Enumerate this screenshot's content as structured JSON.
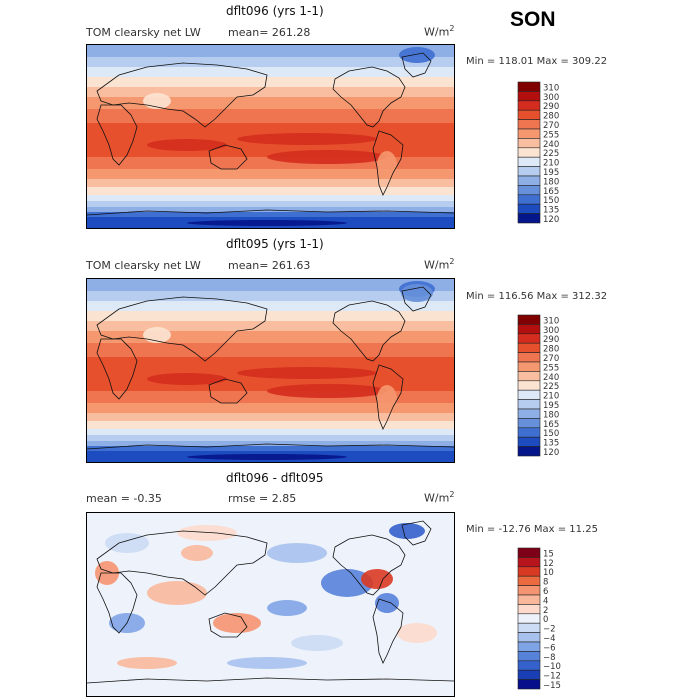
{
  "season": "SON",
  "panels": [
    {
      "title": "dflt096 (yrs 1-1)",
      "variable": "TOM clearsky net LW",
      "mean_label": "mean=",
      "mean_value": "261.28",
      "units_base": "W/m",
      "units_exp": "2",
      "minmax": "Min = 118.01 Max = 309.22",
      "colorbar_levels": [
        "310",
        "300",
        "290",
        "280",
        "270",
        "255",
        "240",
        "225",
        "210",
        "195",
        "180",
        "165",
        "150",
        "135",
        "120"
      ]
    },
    {
      "title": "dflt095 (yrs 1-1)",
      "variable": "TOM clearsky net LW",
      "mean_label": "mean=",
      "mean_value": "261.63",
      "units_base": "W/m",
      "units_exp": "2",
      "minmax": "Min = 116.56 Max = 312.32",
      "colorbar_levels": [
        "310",
        "300",
        "290",
        "280",
        "270",
        "255",
        "240",
        "225",
        "210",
        "195",
        "180",
        "165",
        "150",
        "135",
        "120"
      ]
    },
    {
      "title": "dflt096 - dflt095",
      "mean_label": "mean =",
      "mean_value": "-0.35",
      "rmse_label": "rmse =",
      "rmse_value": "2.85",
      "units_base": "W/m",
      "units_exp": "2",
      "minmax": "Min = -12.76 Max =  11.25",
      "colorbar_levels": [
        "15",
        "12",
        "10",
        "8",
        "6",
        "4",
        "2",
        "0",
        "−2",
        "−4",
        "−6",
        "−8",
        "−10",
        "−12",
        "−15"
      ]
    }
  ],
  "palette_abs": [
    "#800000",
    "#b40f0f",
    "#d42c1e",
    "#e6502c",
    "#ef7450",
    "#f5986f",
    "#f9bea0",
    "#fbe3d2",
    "#dde9f6",
    "#b6cdef",
    "#8eaee6",
    "#6690da",
    "#3f6fd1",
    "#1d4bc0",
    "#05158a"
  ],
  "palette_diff": [
    "#7d0018",
    "#b8141e",
    "#d93a24",
    "#ec6a3f",
    "#f59470",
    "#f9b89c",
    "#fcdacc",
    "#eef2fb",
    "#ccdcf4",
    "#a7c2ee",
    "#7fa4e5",
    "#5782da",
    "#3461cc",
    "#1a3fb4",
    "#070f8a"
  ]
}
